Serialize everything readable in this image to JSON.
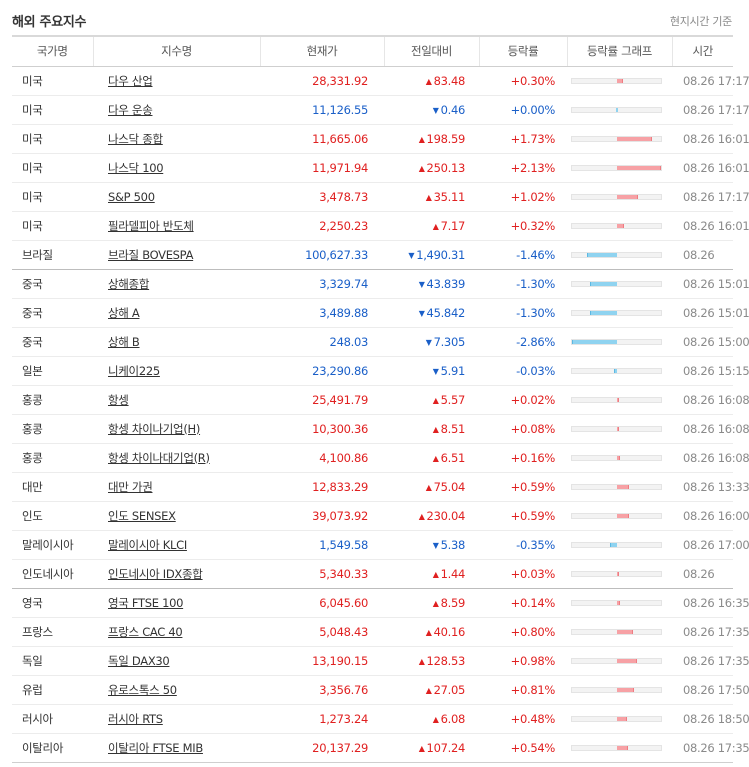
{
  "header": {
    "title": "해외 주요지수",
    "note": "현지시간 기준"
  },
  "columns": [
    "국가명",
    "지수명",
    "현재가",
    "전일대비",
    "등락률",
    "등락률 그래프",
    "시간"
  ],
  "colors": {
    "up": "#e02020",
    "down": "#1a5fc8",
    "bar_up": "#f7a1a5",
    "bar_down": "#8fd3f0"
  },
  "rows": [
    {
      "country": "미국",
      "name": "다우 산업",
      "price": "28,331.92",
      "change": "83.48",
      "dir": "up",
      "rate": "+0.30%",
      "rate_value": 0.3,
      "time": "08.26 17:17"
    },
    {
      "country": "미국",
      "name": "다우 운송",
      "price": "11,126.55",
      "change": "0.46",
      "dir": "down",
      "rate": "+0.00%",
      "rate_value": 0.0,
      "time": "08.26 17:17"
    },
    {
      "country": "미국",
      "name": "나스닥 종합",
      "price": "11,665.06",
      "change": "198.59",
      "dir": "up",
      "rate": "+1.73%",
      "rate_value": 1.73,
      "time": "08.26 16:01"
    },
    {
      "country": "미국",
      "name": "나스닥 100",
      "price": "11,971.94",
      "change": "250.13",
      "dir": "up",
      "rate": "+2.13%",
      "rate_value": 2.13,
      "time": "08.26 16:01"
    },
    {
      "country": "미국",
      "name": "S&P 500",
      "price": "3,478.73",
      "change": "35.11",
      "dir": "up",
      "rate": "+1.02%",
      "rate_value": 1.02,
      "time": "08.26 17:17"
    },
    {
      "country": "미국",
      "name": "필라델피아 반도체",
      "price": "2,250.23",
      "change": "7.17",
      "dir": "up",
      "rate": "+0.32%",
      "rate_value": 0.32,
      "time": "08.26 16:01"
    },
    {
      "country": "브라질",
      "name": "브라질 BOVESPA",
      "price": "100,627.33",
      "change": "1,490.31",
      "dir": "down",
      "rate": "-1.46%",
      "rate_value": -1.46,
      "time": "08.26",
      "group_end": true
    },
    {
      "country": "중국",
      "name": "상해종합",
      "price": "3,329.74",
      "change": "43.839",
      "dir": "down",
      "rate": "-1.30%",
      "rate_value": -1.3,
      "time": "08.26 15:01"
    },
    {
      "country": "중국",
      "name": "상해 A",
      "price": "3,489.88",
      "change": "45.842",
      "dir": "down",
      "rate": "-1.30%",
      "rate_value": -1.3,
      "time": "08.26 15:01"
    },
    {
      "country": "중국",
      "name": "상해 B",
      "price": "248.03",
      "change": "7.305",
      "dir": "down",
      "rate": "-2.86%",
      "rate_value": -2.86,
      "time": "08.26 15:00"
    },
    {
      "country": "일본",
      "name": "니케이225",
      "price": "23,290.86",
      "change": "5.91",
      "dir": "down",
      "rate": "-0.03%",
      "rate_value": -0.03,
      "time": "08.26 15:15"
    },
    {
      "country": "홍콩",
      "name": "항셍",
      "price": "25,491.79",
      "change": "5.57",
      "dir": "up",
      "rate": "+0.02%",
      "rate_value": 0.02,
      "time": "08.26 16:08"
    },
    {
      "country": "홍콩",
      "name": "항셍 차이나기업(H)",
      "price": "10,300.36",
      "change": "8.51",
      "dir": "up",
      "rate": "+0.08%",
      "rate_value": 0.08,
      "time": "08.26 16:08"
    },
    {
      "country": "홍콩",
      "name": "항셍 차이나대기업(R)",
      "price": "4,100.86",
      "change": "6.51",
      "dir": "up",
      "rate": "+0.16%",
      "rate_value": 0.16,
      "time": "08.26 16:08"
    },
    {
      "country": "대만",
      "name": "대만 가권",
      "price": "12,833.29",
      "change": "75.04",
      "dir": "up",
      "rate": "+0.59%",
      "rate_value": 0.59,
      "time": "08.26 13:33"
    },
    {
      "country": "인도",
      "name": "인도 SENSEX",
      "price": "39,073.92",
      "change": "230.04",
      "dir": "up",
      "rate": "+0.59%",
      "rate_value": 0.59,
      "time": "08.26 16:00"
    },
    {
      "country": "말레이시아",
      "name": "말레이시아 KLCI",
      "price": "1,549.58",
      "change": "5.38",
      "dir": "down",
      "rate": "-0.35%",
      "rate_value": -0.35,
      "time": "08.26 17:00"
    },
    {
      "country": "인도네시아",
      "name": "인도네시아 IDX종합",
      "price": "5,340.33",
      "change": "1.44",
      "dir": "up",
      "rate": "+0.03%",
      "rate_value": 0.03,
      "time": "08.26",
      "group_end": true
    },
    {
      "country": "영국",
      "name": "영국 FTSE 100",
      "price": "6,045.60",
      "change": "8.59",
      "dir": "up",
      "rate": "+0.14%",
      "rate_value": 0.14,
      "time": "08.26 16:35"
    },
    {
      "country": "프랑스",
      "name": "프랑스 CAC 40",
      "price": "5,048.43",
      "change": "40.16",
      "dir": "up",
      "rate": "+0.80%",
      "rate_value": 0.8,
      "time": "08.26 17:35"
    },
    {
      "country": "독일",
      "name": "독일 DAX30",
      "price": "13,190.15",
      "change": "128.53",
      "dir": "up",
      "rate": "+0.98%",
      "rate_value": 0.98,
      "time": "08.26 17:35"
    },
    {
      "country": "유럽",
      "name": "유로스톡스 50",
      "price": "3,356.76",
      "change": "27.05",
      "dir": "up",
      "rate": "+0.81%",
      "rate_value": 0.81,
      "time": "08.26 17:50"
    },
    {
      "country": "러시아",
      "name": "러시아 RTS",
      "price": "1,273.24",
      "change": "6.08",
      "dir": "up",
      "rate": "+0.48%",
      "rate_value": 0.48,
      "time": "08.26 18:50"
    },
    {
      "country": "이탈리아",
      "name": "이탈리아 FTSE MIB",
      "price": "20,137.29",
      "change": "107.24",
      "dir": "up",
      "rate": "+0.54%",
      "rate_value": 0.54,
      "time": "08.26 17:35"
    }
  ]
}
